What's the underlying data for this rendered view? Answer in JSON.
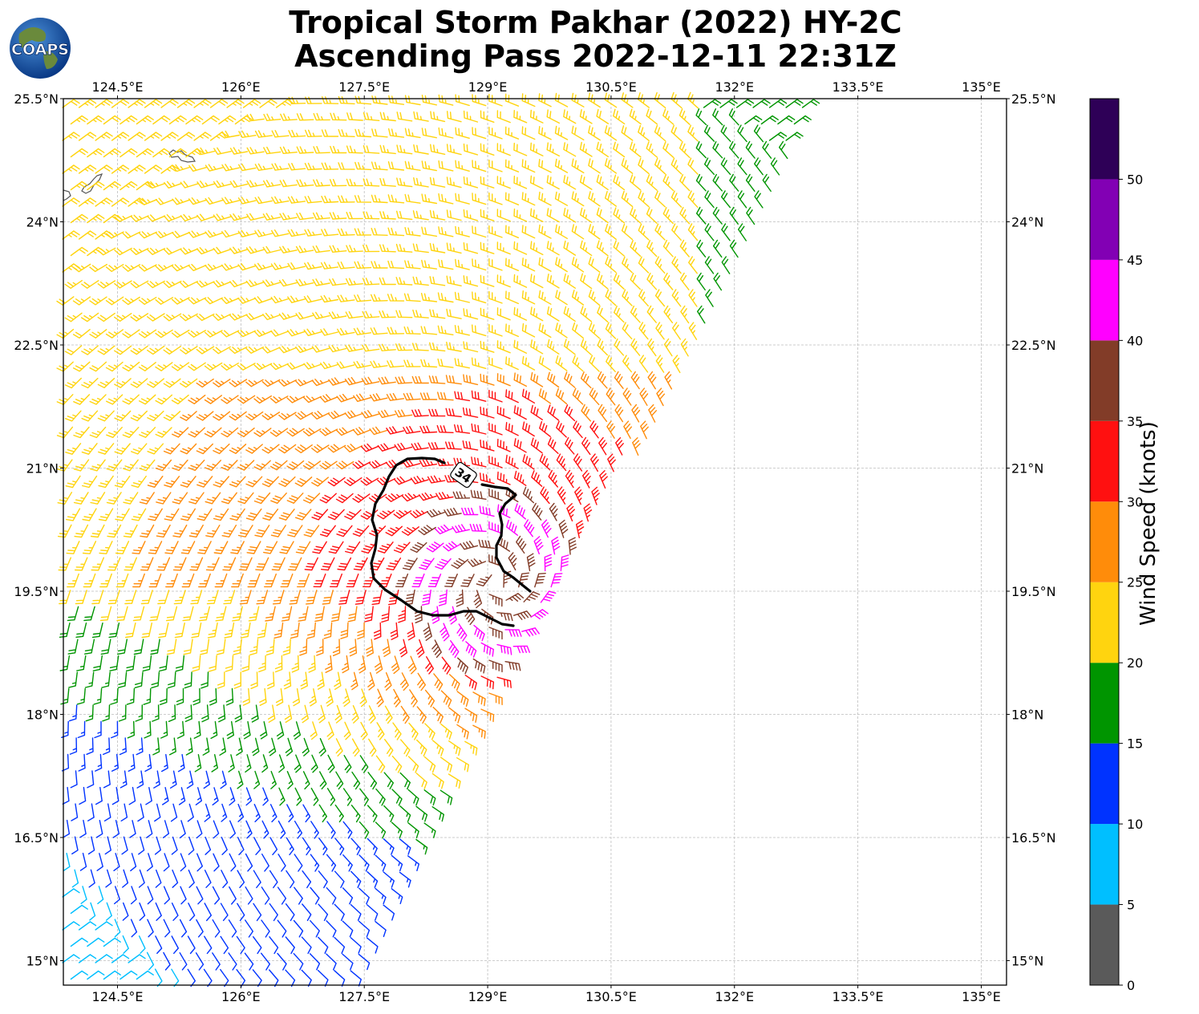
{
  "header": {
    "title_line1": "Tropical Storm Pakhar (2022) HY-2C",
    "title_line2": "Ascending Pass 2022-12-11 22:31Z",
    "logo_text": "COAPS"
  },
  "map": {
    "lon_labels": [
      "124.5°E",
      "126°E",
      "127.5°E",
      "129°E",
      "130.5°E",
      "132°E",
      "133.5°E",
      "135°E"
    ],
    "lat_labels": [
      "25.5°N",
      "24°N",
      "22.5°N",
      "21°N",
      "19.5°N",
      "18°N",
      "16.5°N",
      "15°N"
    ],
    "lon_values": [
      124.5,
      126,
      127.5,
      129,
      130.5,
      132,
      133.5,
      135
    ],
    "lat_values": [
      25.5,
      24,
      22.5,
      21,
      19.5,
      18,
      16.5,
      15
    ],
    "lon_range": [
      123.85,
      135.35
    ],
    "lat_range": [
      14.7,
      25.5
    ],
    "storm_center": {
      "lon": 129.1,
      "lat": 19.6
    },
    "contour_label": "34",
    "grid": true
  },
  "colorbar": {
    "title": "Wind Speed (knots)",
    "ticks": [
      "0",
      "5",
      "10",
      "15",
      "20",
      "25",
      "30",
      "35",
      "40",
      "45",
      "50"
    ],
    "bins": [
      {
        "min": 0,
        "max": 5,
        "color": "#5a5a5a"
      },
      {
        "min": 5,
        "max": 10,
        "color": "#00bfff"
      },
      {
        "min": 10,
        "max": 15,
        "color": "#0033ff"
      },
      {
        "min": 15,
        "max": 20,
        "color": "#009500"
      },
      {
        "min": 20,
        "max": 25,
        "color": "#ffd40f"
      },
      {
        "min": 25,
        "max": 30,
        "color": "#ff8c0a"
      },
      {
        "min": 30,
        "max": 35,
        "color": "#ff1010"
      },
      {
        "min": 35,
        "max": 40,
        "color": "#823c28"
      },
      {
        "min": 40,
        "max": 45,
        "color": "#ff00ff"
      },
      {
        "min": 45,
        "max": 50,
        "color": "#8200b4"
      },
      {
        "min": 50,
        "max": 55,
        "color": "#2e0057"
      }
    ]
  }
}
